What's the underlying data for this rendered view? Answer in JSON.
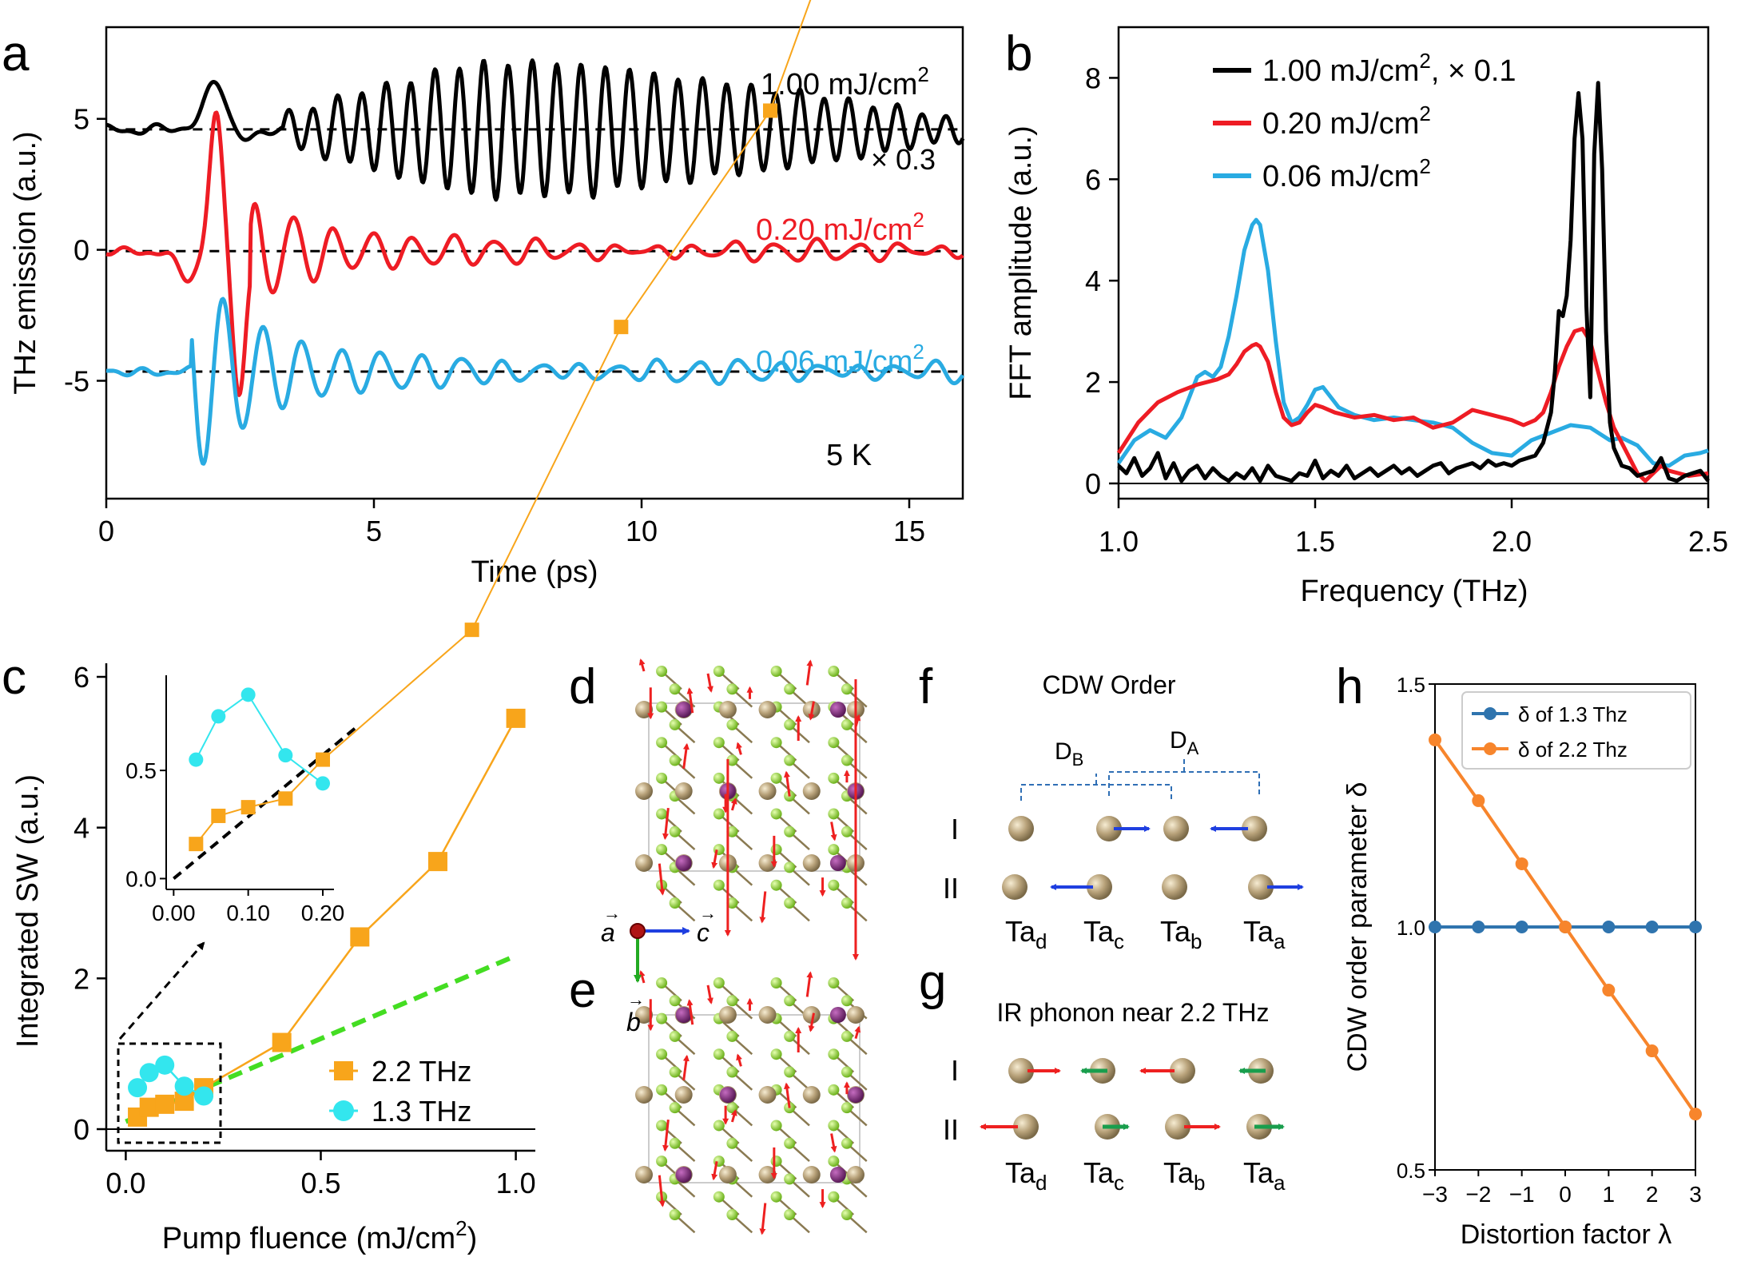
{
  "panel_letters": [
    "a",
    "b",
    "c",
    "d",
    "e",
    "f",
    "g",
    "h"
  ],
  "colors": {
    "black": "#000000",
    "red": "#ee1c24",
    "cyan_a": "#29abe2",
    "orange": "#f8a51b",
    "cyan_c": "#33e6ee",
    "green_fit": "#44dd22",
    "blue_h": "#2f74ae",
    "orange_h": "#f7852c",
    "blue_arrow": "#1f3fe0",
    "red_arrow": "#ee2020",
    "green_arrow": "#199e4d",
    "ta": "#b8a27a",
    "dashed_bracket": "#2f6fb5"
  },
  "chart_data": [
    {
      "panel": "a",
      "type": "line",
      "xlabel": "Time (ps)",
      "ylabel": "THz emission (a.u.)",
      "xlim": [
        0,
        16
      ],
      "ylim": [
        -9.5,
        8.5
      ],
      "xticks": [
        0,
        5,
        10,
        15
      ],
      "yticks": [
        -5,
        0,
        5
      ],
      "series": [
        {
          "name": "1.00 mJ/cm2",
          "label_main": "1.00 mJ/cm",
          "label_sup": "2",
          "scale_label": "× 0.3",
          "color": "#000000",
          "offset": 4.6
        },
        {
          "name": "0.20 mJ/cm2",
          "label_main": "0.20 mJ/cm",
          "label_sup": "2",
          "color": "#ee1c24",
          "offset": -0.05
        },
        {
          "name": "0.06 mJ/cm2",
          "label_main": "0.06 mJ/cm",
          "label_sup": "2",
          "color": "#29abe2",
          "offset": -4.65
        }
      ],
      "annotation": "5 K"
    },
    {
      "panel": "b",
      "type": "line",
      "xlabel": "Frequency (THz)",
      "ylabel": "FFT amplitude (a.u.)",
      "xlim": [
        1.0,
        2.5
      ],
      "ylim": [
        -0.3,
        9.0
      ],
      "xticks": [
        "1.0",
        "1.5",
        "2.0",
        "2.5"
      ],
      "yticks": [
        0,
        2,
        4,
        6,
        8
      ],
      "legend": [
        {
          "main": "1.00 mJ/cm",
          "sup": "2",
          "suffix": ", × 0.1",
          "color": "#000000"
        },
        {
          "main": "0.20 mJ/cm",
          "sup": "2",
          "suffix": "",
          "color": "#ee1c24"
        },
        {
          "main": "0.06 mJ/cm",
          "sup": "2",
          "suffix": "",
          "color": "#29abe2"
        }
      ],
      "series": [
        {
          "name": "1.00 mJ/cm2 x0.1",
          "color": "#000000",
          "x": [
            1.0,
            1.02,
            1.04,
            1.06,
            1.08,
            1.1,
            1.12,
            1.14,
            1.16,
            1.18,
            1.2,
            1.22,
            1.24,
            1.26,
            1.28,
            1.3,
            1.32,
            1.34,
            1.36,
            1.38,
            1.4,
            1.42,
            1.44,
            1.46,
            1.48,
            1.5,
            1.52,
            1.54,
            1.56,
            1.58,
            1.6,
            1.62,
            1.64,
            1.66,
            1.68,
            1.7,
            1.72,
            1.74,
            1.76,
            1.78,
            1.8,
            1.82,
            1.84,
            1.86,
            1.88,
            1.9,
            1.92,
            1.94,
            1.96,
            1.98,
            2.0,
            2.02,
            2.04,
            2.06,
            2.08,
            2.1,
            2.11,
            2.12,
            2.13,
            2.14,
            2.15,
            2.16,
            2.17,
            2.18,
            2.19,
            2.2,
            2.21,
            2.22,
            2.23,
            2.24,
            2.25,
            2.26,
            2.28,
            2.3,
            2.32,
            2.34,
            2.36,
            2.38,
            2.4,
            2.42,
            2.44,
            2.46,
            2.48,
            2.5
          ],
          "values": [
            0.35,
            0.2,
            0.5,
            0.15,
            0.3,
            0.6,
            0.1,
            0.4,
            0.05,
            0.25,
            0.35,
            0.1,
            0.3,
            0.15,
            0.05,
            0.2,
            0.1,
            0.3,
            0.05,
            0.35,
            0.15,
            0.1,
            0.05,
            0.2,
            0.15,
            0.45,
            0.1,
            0.25,
            0.15,
            0.35,
            0.1,
            0.2,
            0.3,
            0.15,
            0.25,
            0.35,
            0.2,
            0.3,
            0.15,
            0.25,
            0.35,
            0.4,
            0.2,
            0.3,
            0.35,
            0.4,
            0.3,
            0.45,
            0.35,
            0.4,
            0.35,
            0.45,
            0.5,
            0.55,
            0.8,
            1.4,
            2.2,
            3.4,
            3.3,
            3.7,
            4.8,
            6.8,
            7.7,
            6.8,
            3.5,
            1.7,
            6.5,
            7.9,
            6.2,
            3.0,
            1.2,
            0.7,
            0.35,
            0.3,
            0.15,
            0.2,
            0.25,
            0.5,
            0.1,
            0.05,
            0.15,
            0.2,
            0.25,
            0.05
          ]
        },
        {
          "name": "0.20 mJ/cm2",
          "color": "#ee1c24",
          "x": [
            1.0,
            1.05,
            1.1,
            1.15,
            1.2,
            1.25,
            1.28,
            1.3,
            1.32,
            1.34,
            1.35,
            1.36,
            1.38,
            1.4,
            1.42,
            1.44,
            1.46,
            1.48,
            1.5,
            1.52,
            1.55,
            1.6,
            1.65,
            1.7,
            1.75,
            1.8,
            1.85,
            1.9,
            1.95,
            2.0,
            2.03,
            2.06,
            2.08,
            2.1,
            2.12,
            2.14,
            2.16,
            2.18,
            2.2,
            2.22,
            2.24,
            2.26,
            2.28,
            2.3,
            2.32,
            2.34,
            2.36,
            2.38,
            2.4,
            2.45,
            2.5
          ],
          "values": [
            0.6,
            1.2,
            1.6,
            1.8,
            1.95,
            2.05,
            2.15,
            2.35,
            2.6,
            2.72,
            2.75,
            2.7,
            2.4,
            1.8,
            1.3,
            1.15,
            1.2,
            1.4,
            1.55,
            1.5,
            1.4,
            1.3,
            1.35,
            1.25,
            1.3,
            1.1,
            1.2,
            1.45,
            1.35,
            1.25,
            1.15,
            1.25,
            1.4,
            1.8,
            2.3,
            2.7,
            3.0,
            3.05,
            2.8,
            2.2,
            1.6,
            1.1,
            0.8,
            0.5,
            0.2,
            0.05,
            0.2,
            0.35,
            0.25,
            0.15,
            0.2
          ]
        },
        {
          "name": "0.06 mJ/cm2",
          "color": "#29abe2",
          "x": [
            1.0,
            1.04,
            1.08,
            1.12,
            1.16,
            1.2,
            1.22,
            1.24,
            1.26,
            1.28,
            1.3,
            1.32,
            1.34,
            1.35,
            1.36,
            1.38,
            1.4,
            1.42,
            1.44,
            1.46,
            1.48,
            1.5,
            1.52,
            1.54,
            1.56,
            1.6,
            1.65,
            1.7,
            1.75,
            1.8,
            1.85,
            1.9,
            1.95,
            2.0,
            2.05,
            2.1,
            2.15,
            2.2,
            2.25,
            2.28,
            2.32,
            2.36,
            2.4,
            2.44,
            2.48,
            2.5
          ],
          "values": [
            0.4,
            0.85,
            1.05,
            0.9,
            1.3,
            2.1,
            2.2,
            2.1,
            2.3,
            2.9,
            3.7,
            4.6,
            5.1,
            5.2,
            5.1,
            4.2,
            2.8,
            1.6,
            1.2,
            1.3,
            1.55,
            1.85,
            1.9,
            1.7,
            1.5,
            1.35,
            1.25,
            1.3,
            1.25,
            1.2,
            1.1,
            0.8,
            0.6,
            0.55,
            0.85,
            1.0,
            1.15,
            1.1,
            0.85,
            0.9,
            0.75,
            0.4,
            0.35,
            0.55,
            0.6,
            0.65
          ]
        }
      ]
    },
    {
      "panel": "c",
      "type": "scatter",
      "xlabel": "Pump fluence (mJ/cm",
      "xlabel_sup": "2",
      "xlabel_end": ")",
      "ylabel": "Integrated SW (a.u.)",
      "xlim": [
        -0.05,
        1.05
      ],
      "ylim": [
        -0.3,
        6.2
      ],
      "xticks": [
        "0.0",
        "0.5",
        "1.0"
      ],
      "yticks": [
        0,
        2,
        4,
        6
      ],
      "series": [
        {
          "name": "2.2 THz",
          "color": "#f8a51b",
          "marker": "square",
          "x": [
            0.03,
            0.06,
            0.1,
            0.15,
            0.2,
            0.4,
            0.6,
            0.8,
            1.0
          ],
          "values": [
            0.16,
            0.29,
            0.33,
            0.37,
            0.55,
            1.15,
            2.55,
            3.55,
            5.45
          ]
        },
        {
          "name": "1.3 THz",
          "color": "#33e6ee",
          "marker": "circle",
          "x": [
            0.03,
            0.06,
            0.1,
            0.15,
            0.2
          ],
          "values": [
            0.55,
            0.75,
            0.85,
            0.57,
            0.44
          ]
        }
      ],
      "fit": {
        "color": "#44dd22",
        "x": [
          0.0,
          1.0
        ],
        "values": [
          0.1,
          2.3
        ]
      },
      "inset": {
        "xlim": [
          -0.01,
          0.215
        ],
        "ylim": [
          -0.05,
          0.94
        ],
        "xticks": [
          "0.00",
          "0.10",
          "0.20"
        ],
        "yticks": [
          "0.0",
          "0.5"
        ],
        "fit_x": [
          0.0,
          0.21
        ],
        "fit_values": [
          0.0,
          0.6
        ]
      }
    },
    {
      "panel": "h",
      "type": "line",
      "xlabel": "Distortion factor λ",
      "ylabel": "CDW order parameter δ",
      "xlim": [
        -3,
        3
      ],
      "ylim": [
        0.5,
        1.5
      ],
      "xticks": [
        "−3",
        "−2",
        "−1",
        "0",
        "1",
        "2",
        "3"
      ],
      "yticks": [
        "0.5",
        "1.0",
        "1.5"
      ],
      "series": [
        {
          "name": "δ of 1.3 Thz",
          "color": "#2f74ae",
          "x": [
            -3,
            -2,
            -1,
            0,
            1,
            2,
            3
          ],
          "values": [
            1.0,
            1.0,
            1.0,
            1.0,
            1.0,
            1.0,
            1.0
          ]
        },
        {
          "name": "δ of 2.2 Thz",
          "color": "#f7852c",
          "x": [
            -3,
            -2,
            -1,
            0,
            1,
            2,
            3
          ],
          "values": [
            1.385,
            1.26,
            1.13,
            1.0,
            0.87,
            0.745,
            0.615
          ]
        }
      ]
    }
  ],
  "panel_d": {
    "axis_a": "a",
    "axis_c": "c",
    "axis_b": "b"
  },
  "panel_f": {
    "title": "CDW Order",
    "d_b_main": "D",
    "d_b_sub": "B",
    "d_a_main": "D",
    "d_a_sub": "A",
    "row_I": "I",
    "row_II": "II"
  },
  "panel_g": {
    "title": "IR phonon near 2.2 THz",
    "row_I": "I",
    "row_II": "II"
  },
  "ta_labels": [
    {
      "main": "Ta",
      "sub": "d"
    },
    {
      "main": "Ta",
      "sub": "c"
    },
    {
      "main": "Ta",
      "sub": "b"
    },
    {
      "main": "Ta",
      "sub": "a"
    }
  ]
}
